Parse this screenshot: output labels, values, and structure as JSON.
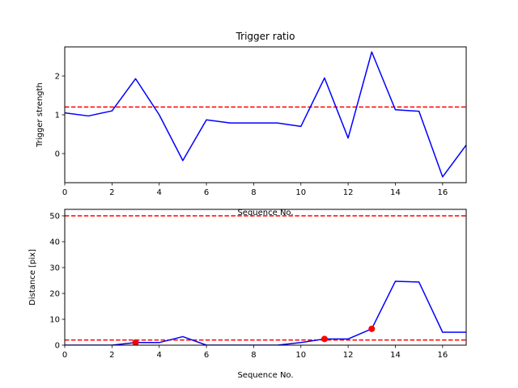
{
  "chart_data": [
    {
      "type": "line",
      "title": "Trigger ratio",
      "xlabel": "Sequence No.",
      "ylabel": "Trigger strength",
      "xlim": [
        0,
        17
      ],
      "ylim": [
        -0.75,
        2.75
      ],
      "xticks": [
        0,
        2,
        4,
        6,
        8,
        10,
        12,
        14,
        16
      ],
      "yticks": [
        0,
        1,
        2
      ],
      "grid": false,
      "series": [
        {
          "color": "#0000ff",
          "style": "solid",
          "x": [
            0,
            1,
            2,
            3,
            4,
            5,
            6,
            7,
            8,
            9,
            10,
            11,
            12,
            13,
            14,
            15,
            16,
            17
          ],
          "y": [
            1.05,
            0.97,
            1.1,
            1.93,
            1.0,
            -0.18,
            0.87,
            0.79,
            0.79,
            0.79,
            0.7,
            1.95,
            0.4,
            2.62,
            1.13,
            1.09,
            -0.6,
            0.22
          ]
        }
      ],
      "hlines": [
        {
          "y": 1.2,
          "color": "#ff0000",
          "style": "dashed"
        }
      ]
    },
    {
      "type": "line",
      "title": "",
      "xlabel": "Sequence No.",
      "ylabel": "Distance [pix]",
      "xlim": [
        0,
        17
      ],
      "ylim": [
        0,
        52.5
      ],
      "xticks": [
        0,
        2,
        4,
        6,
        8,
        10,
        12,
        14,
        16
      ],
      "yticks": [
        0,
        10,
        20,
        30,
        40,
        50
      ],
      "grid": false,
      "series": [
        {
          "color": "#0000ff",
          "style": "solid",
          "x": [
            0,
            1,
            2,
            3,
            4,
            5,
            6,
            7,
            8,
            9,
            10,
            11,
            12,
            13,
            14,
            15,
            16,
            17
          ],
          "y": [
            0,
            0,
            0,
            1.0,
            1.0,
            3.3,
            0,
            0,
            0,
            0,
            1.0,
            2.4,
            2.4,
            6.3,
            24.7,
            24.4,
            5.0,
            5.0
          ]
        }
      ],
      "markers": {
        "color": "#ff0000",
        "x": [
          3,
          11,
          13
        ],
        "y": [
          1.0,
          2.4,
          6.3
        ]
      },
      "hlines": [
        {
          "y": 50,
          "color": "#ff0000",
          "style": "dashed"
        },
        {
          "y": 2,
          "color": "#ff0000",
          "style": "dashed"
        }
      ]
    }
  ]
}
